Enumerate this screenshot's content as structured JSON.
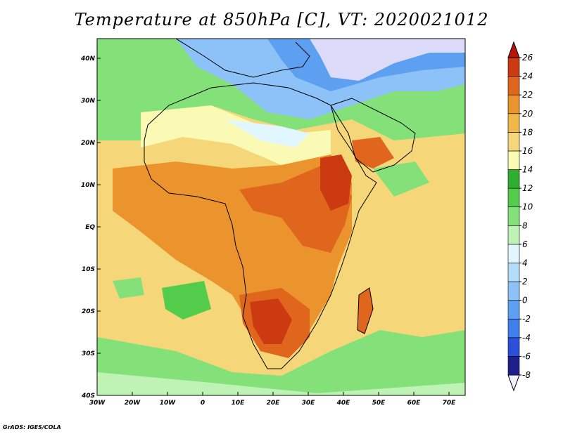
{
  "title": "Temperature at 850hPa [C], VT: 2020021012",
  "credit": "GrADS: IGES/COLA",
  "map": {
    "lat_ticks": [
      "40N",
      "30N",
      "20N",
      "10N",
      "EQ",
      "10S",
      "20S",
      "30S",
      "40S"
    ],
    "lon_ticks": [
      "30W",
      "20W",
      "10W",
      "0",
      "10E",
      "20E",
      "30E",
      "40E",
      "50E",
      "60E",
      "70E"
    ]
  },
  "colorbar": {
    "levels": [
      "26",
      "24",
      "22",
      "20",
      "18",
      "16",
      "14",
      "12",
      "10",
      "8",
      "6",
      "4",
      "2",
      "0",
      "-2",
      "-4",
      "-6",
      "-8"
    ],
    "colors": [
      "#f0f0ff",
      "#1e1e8c",
      "#2b4fd8",
      "#3f7fea",
      "#5da0f2",
      "#8cc2f7",
      "#b4dcfb",
      "#e2f6ff",
      "#bff2b5",
      "#84e17a",
      "#52cc4a",
      "#2fae2f",
      "#fafab4",
      "#f5d77a",
      "#f0b84b",
      "#eb932d",
      "#e0661e",
      "#cc3a12",
      "#b8140c"
    ]
  }
}
